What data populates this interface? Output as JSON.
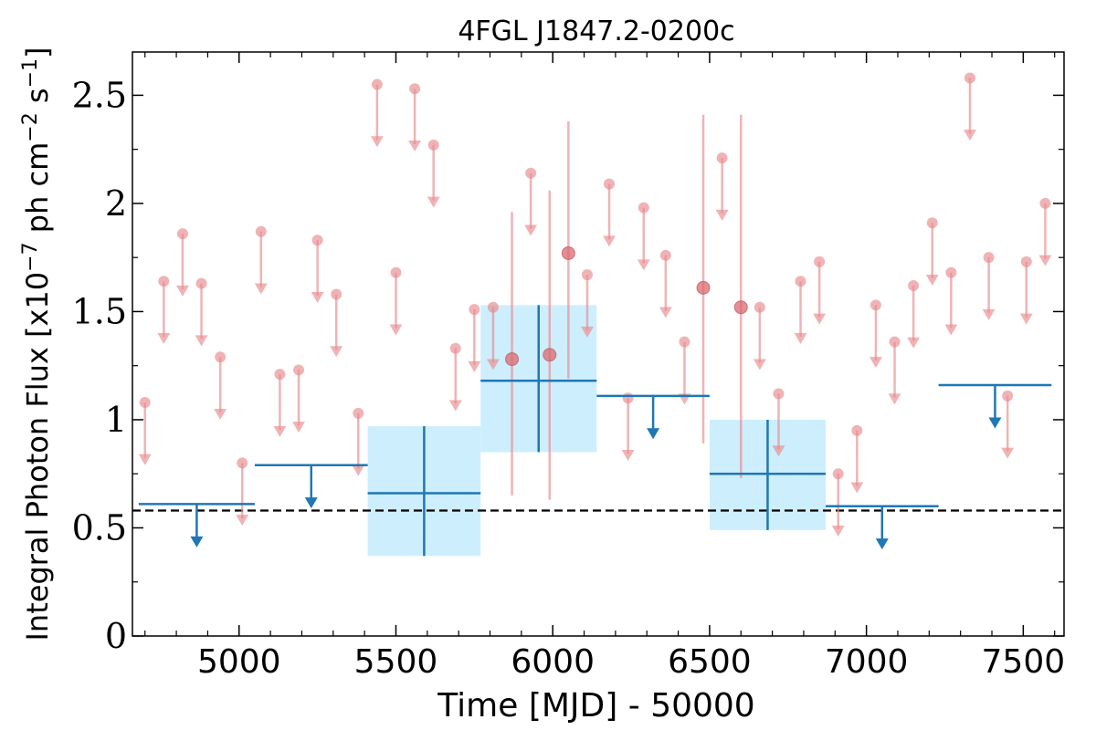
{
  "chart_data": {
    "type": "scatter",
    "title": "4FGL J1847.2-0200c",
    "xlabel": "Time [MJD] - 50000",
    "ylabel": "Integral Photon Flux [x10",
    "ylabel_exp": "−7",
    "ylabel_mid": " ph cm",
    "ylabel_exp2": "−2",
    "ylabel_end": " s",
    "ylabel_exp3": "−1",
    "ylabel_close": "]",
    "xlim": [
      4660,
      7630
    ],
    "ylim": [
      0,
      2.7
    ],
    "xticks": [
      5000,
      5500,
      6000,
      6500,
      7000,
      7500
    ],
    "xtick_labels": [
      "5000",
      "5500",
      "6000",
      "6500",
      "7000",
      "7500"
    ],
    "yticks": [
      0,
      0.5,
      1,
      1.5,
      2,
      2.5
    ],
    "ytick_labels": [
      "0",
      "0.5",
      "1",
      "1.5",
      "2",
      "2.5"
    ],
    "reference_line_y": 0.58,
    "colors": {
      "fine": "#e88a8d",
      "coarse": "#1f77b4",
      "coarse_box": "#cdeefd",
      "reference": "#000000"
    },
    "series": [
      {
        "kind": "fine_upper_limits",
        "points": [
          [
            4700,
            1.08
          ],
          [
            4760,
            1.64
          ],
          [
            4820,
            1.86
          ],
          [
            4880,
            1.63
          ],
          [
            4940,
            1.29
          ],
          [
            5010,
            0.8
          ],
          [
            5070,
            1.87
          ],
          [
            5130,
            1.21
          ],
          [
            5190,
            1.23
          ],
          [
            5250,
            1.83
          ],
          [
            5310,
            1.58
          ],
          [
            5380,
            1.03
          ],
          [
            5440,
            2.55
          ],
          [
            5500,
            1.68
          ],
          [
            5560,
            2.53
          ],
          [
            5620,
            2.27
          ],
          [
            5690,
            1.33
          ],
          [
            5750,
            1.51
          ],
          [
            5810,
            1.52
          ],
          [
            5930,
            2.14
          ],
          [
            6110,
            1.67
          ],
          [
            6180,
            2.09
          ],
          [
            6240,
            1.1
          ],
          [
            6290,
            1.98
          ],
          [
            6360,
            1.76
          ],
          [
            6420,
            1.36
          ],
          [
            6540,
            2.21
          ],
          [
            6660,
            1.52
          ],
          [
            6720,
            1.12
          ],
          [
            6790,
            1.64
          ],
          [
            6850,
            1.73
          ],
          [
            6910,
            0.75
          ],
          [
            6970,
            0.95
          ],
          [
            7030,
            1.53
          ],
          [
            7090,
            1.36
          ],
          [
            7150,
            1.62
          ],
          [
            7210,
            1.91
          ],
          [
            7270,
            1.68
          ],
          [
            7330,
            2.58
          ],
          [
            7390,
            1.75
          ],
          [
            7450,
            1.11
          ],
          [
            7510,
            1.73
          ],
          [
            7570,
            2.0
          ]
        ]
      },
      {
        "kind": "fine_detections",
        "points": [
          [
            5870,
            1.28,
            0.65,
            1.96
          ],
          [
            5990,
            1.3,
            0.63,
            2.06
          ],
          [
            6050,
            1.77,
            1.19,
            2.38
          ],
          [
            6480,
            1.61,
            0.89,
            2.41
          ],
          [
            6600,
            1.52,
            0.73,
            2.41
          ]
        ]
      },
      {
        "kind": "coarse_upper_limits",
        "bins": [
          [
            4680,
            5050,
            0.61
          ],
          [
            5050,
            5410,
            0.79
          ],
          [
            6140,
            6500,
            1.11
          ],
          [
            6870,
            7230,
            0.6
          ],
          [
            7230,
            7590,
            1.16
          ]
        ]
      },
      {
        "kind": "coarse_detections",
        "bins": [
          [
            5410,
            5770,
            0.66,
            0.37,
            0.97
          ],
          [
            5770,
            6140,
            1.18,
            0.85,
            1.53
          ],
          [
            6500,
            6870,
            0.75,
            0.49,
            1.0
          ]
        ]
      }
    ]
  }
}
